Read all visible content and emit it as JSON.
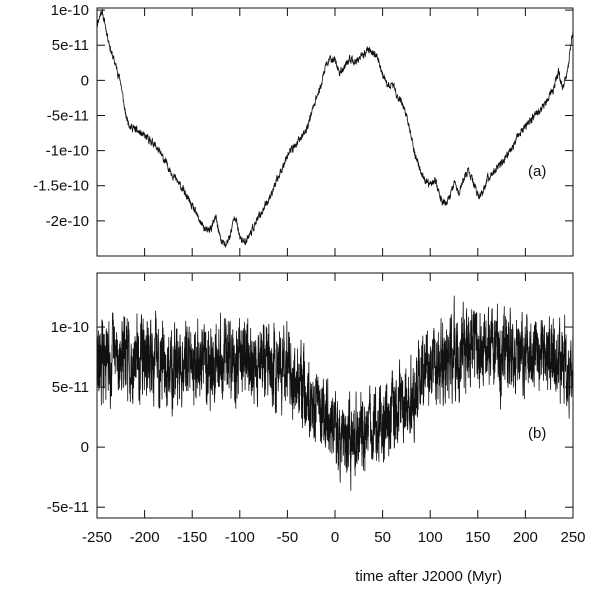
{
  "chart_data": [
    {
      "type": "line",
      "panel_label": "(a)",
      "xlim": [
        -250,
        250
      ],
      "ylim": [
        -2.5e-10,
        1.03e-10
      ],
      "yticks": [
        1e-10,
        5e-11,
        0,
        -5e-11,
        -1e-10,
        -1.5e-10,
        -2e-10
      ],
      "ytick_labels": [
        "1e-10",
        "5e-11",
        "0",
        "-5e-11",
        "-1e-10",
        "-1.5e-10",
        "-2e-10"
      ],
      "xticks": [
        -250,
        -200,
        -150,
        -100,
        -50,
        0,
        50,
        100,
        150,
        200,
        250
      ],
      "grid": false,
      "series": [
        {
          "color": "#111111",
          "noise": 4e-12,
          "x": [
            -250,
            -245,
            -240,
            -235,
            -230,
            -225,
            -220,
            -215,
            -210,
            -200,
            -190,
            -180,
            -170,
            -160,
            -150,
            -140,
            -135,
            -130,
            -125,
            -120,
            -115,
            -110,
            -105,
            -100,
            -95,
            -90,
            -80,
            -70,
            -60,
            -50,
            -40,
            -30,
            -20,
            -15,
            -10,
            -5,
            0,
            5,
            10,
            15,
            20,
            25,
            30,
            35,
            40,
            45,
            50,
            55,
            60,
            65,
            70,
            75,
            80,
            85,
            90,
            95,
            100,
            105,
            110,
            115,
            120,
            125,
            130,
            135,
            140,
            145,
            150,
            155,
            160,
            170,
            180,
            190,
            200,
            210,
            220,
            230,
            235,
            240,
            245,
            250
          ],
          "y": [
            8e-11,
            1e-10,
            7e-11,
            4e-11,
            2e-11,
            -3e-12,
            -5e-11,
            -6.5e-11,
            -7e-11,
            -8e-11,
            -9e-11,
            -1.12e-10,
            -1.35e-10,
            -1.55e-10,
            -1.8e-10,
            -2.05e-10,
            -2.15e-10,
            -2.1e-10,
            -1.95e-10,
            -2.28e-10,
            -2.35e-10,
            -2.2e-10,
            -1.9e-10,
            -2.25e-10,
            -2.3e-10,
            -2.2e-10,
            -1.95e-10,
            -1.7e-10,
            -1.4e-10,
            -1.05e-10,
            -9e-11,
            -7e-11,
            -2.5e-11,
            -1e-11,
            2e-11,
            3e-11,
            3e-11,
            1e-11,
            2e-11,
            3e-11,
            2.5e-11,
            3e-11,
            3.5e-11,
            4.5e-11,
            4e-11,
            3e-11,
            1e-11,
            -1e-11,
            -5e-12,
            -2e-11,
            -3e-11,
            -5e-11,
            -8e-11,
            -1.1e-10,
            -1.3e-10,
            -1.45e-10,
            -1.5e-10,
            -1.4e-10,
            -1.65e-10,
            -1.75e-10,
            -1.7e-10,
            -1.45e-10,
            -1.6e-10,
            -1.4e-10,
            -1.3e-10,
            -1.45e-10,
            -1.65e-10,
            -1.6e-10,
            -1.4e-10,
            -1.25e-10,
            -1.1e-10,
            -8.5e-11,
            -6.5e-11,
            -5e-11,
            -3.5e-11,
            -1e-11,
            1e-11,
            -1e-11,
            2e-11,
            7.5e-11
          ]
        }
      ]
    },
    {
      "type": "line",
      "panel_label": "(b)",
      "xlim": [
        -250,
        250
      ],
      "xlabel": "time after J2000 (Myr)",
      "ylim": [
        -5.9e-11,
        1.45e-10
      ],
      "yticks": [
        1e-10,
        5e-11,
        0,
        -5e-11
      ],
      "ytick_labels": [
        "1e-10",
        "5e-11",
        "0",
        "-5e-11"
      ],
      "xticks": [
        -250,
        -200,
        -150,
        -100,
        -50,
        0,
        50,
        100,
        150,
        200,
        250
      ],
      "xtick_labels": [
        "-250",
        "-200",
        "-150",
        "-100",
        "-50",
        "0",
        "50",
        "100",
        "150",
        "200",
        "250"
      ],
      "grid": false,
      "series": [
        {
          "color": "#111111",
          "noise": 2.3e-11,
          "x": [
            -250,
            -225,
            -200,
            -175,
            -150,
            -125,
            -100,
            -75,
            -50,
            -25,
            -10,
            0,
            10,
            25,
            40,
            60,
            80,
            100,
            125,
            150,
            175,
            200,
            225,
            250
          ],
          "y": [
            7e-11,
            7.5e-11,
            7.5e-11,
            7e-11,
            7e-11,
            7.5e-11,
            7e-11,
            7e-11,
            6.5e-11,
            4e-11,
            2e-11,
            1.5e-11,
            5e-12,
            5e-12,
            1.5e-11,
            2.5e-11,
            4e-11,
            7e-11,
            8e-11,
            8.5e-11,
            8e-11,
            7.5e-11,
            7.5e-11,
            7e-11
          ]
        }
      ]
    }
  ]
}
